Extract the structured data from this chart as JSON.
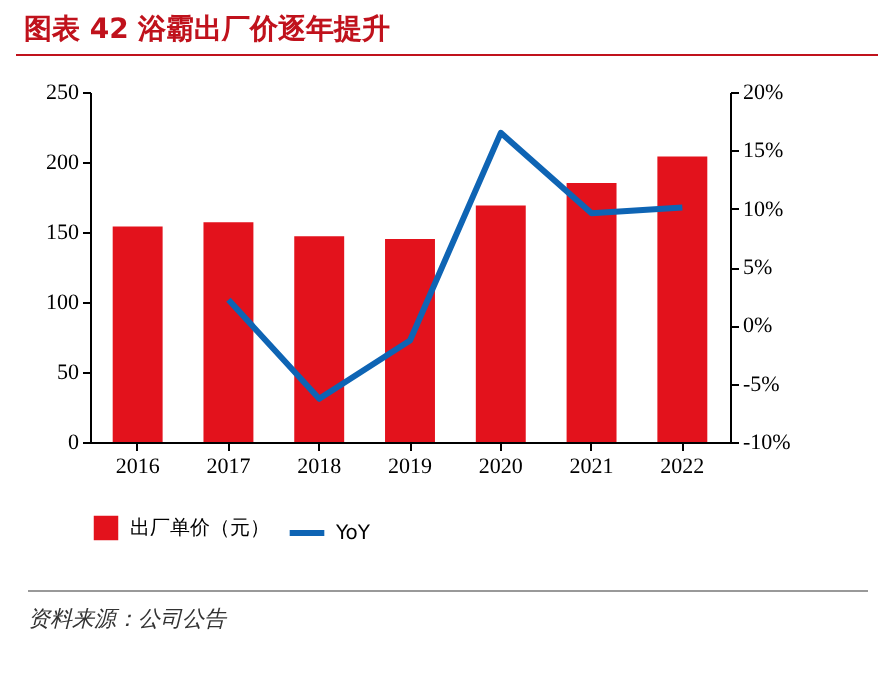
{
  "chart_data": {
    "type": "bar",
    "title": "图表 42   浴霸出厂价逐年提升",
    "categories": [
      "2016",
      "2017",
      "2018",
      "2019",
      "2020",
      "2021",
      "2022"
    ],
    "series": [
      {
        "name": "出厂单价（元）",
        "color": "#e3121c",
        "values": [
          154,
          157,
          147,
          145,
          169,
          185,
          204
        ]
      },
      {
        "name": "YoY",
        "type": "line",
        "axis": "y2",
        "color": "#0e64b4",
        "values": [
          null,
          2.2,
          -6.3,
          -1.3,
          16.5,
          9.6,
          10.1
        ]
      }
    ],
    "ylim": [
      0,
      250
    ],
    "yticks": [
      0,
      50,
      100,
      150,
      200,
      250
    ],
    "y2lim": [
      -10,
      20
    ],
    "y2ticks": [
      {
        "value": -10,
        "label": "-10%"
      },
      {
        "value": -5,
        "label": "-5%"
      },
      {
        "value": 0,
        "label": "0%"
      },
      {
        "value": 5,
        "label": "5%"
      },
      {
        "value": 10,
        "label": "10%"
      },
      {
        "value": 15,
        "label": "15%"
      },
      {
        "value": 20,
        "label": "20%"
      }
    ],
    "legend": "bottom",
    "grid": false,
    "marker": "none",
    "annotations": [
      "资料来源：公司公告"
    ]
  }
}
